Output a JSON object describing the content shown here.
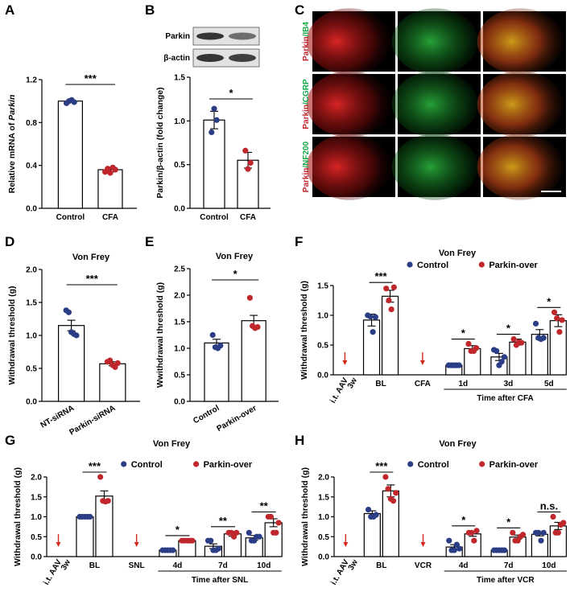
{
  "colors": {
    "control": "#2b3d84",
    "treat": "#c0272d",
    "arrow": "#d42a1e",
    "ib4": "#1aa84a"
  },
  "panel_labels": [
    "A",
    "B",
    "C",
    "D",
    "E",
    "F",
    "G",
    "H"
  ],
  "blot": {
    "rows": [
      "Parkin",
      "β-actin"
    ]
  },
  "micro": {
    "rows": [
      {
        "a": "Parkin",
        "b": "/IB4"
      },
      {
        "a": "Parkin",
        "b": "/CGRP"
      },
      {
        "a": "Parkin",
        "b": "/NF200"
      }
    ]
  },
  "chart_data": [
    {
      "id": "A",
      "type": "bar",
      "ylabel_plain": "Relative mRNA of ",
      "ylabel_italic": "Parkin",
      "ylim": [
        0,
        1.2
      ],
      "yticks": [
        "0.0",
        "0.4",
        "0.8",
        "1.2"
      ],
      "ytick_values": [
        0,
        0.4,
        0.8,
        1.2
      ],
      "categories": [
        "Control",
        "CFA"
      ],
      "values": [
        1.0,
        0.36
      ],
      "errors": [
        0.01,
        0.02
      ],
      "points": [
        [
          0.98,
          1.0,
          1.01,
          0.99
        ],
        [
          0.34,
          0.37,
          0.33,
          0.38,
          0.36
        ]
      ],
      "significance": [
        {
          "text": "***"
        }
      ]
    },
    {
      "id": "B",
      "type": "bar",
      "ylabel": "Parkin/β-actin (fold change)",
      "ylim": [
        0,
        1.5
      ],
      "yticks": [
        "0.0",
        "0.5",
        "1.0",
        "1.5"
      ],
      "ytick_values": [
        0,
        0.5,
        1.0,
        1.5
      ],
      "categories": [
        "Control",
        "CFA"
      ],
      "values": [
        1.01,
        0.55
      ],
      "errors": [
        0.1,
        0.09
      ],
      "points": [
        [
          0.87,
          1.14,
          1.01
        ],
        [
          0.66,
          0.45,
          0.52
        ]
      ],
      "significance": [
        {
          "text": "*"
        }
      ]
    },
    {
      "id": "D",
      "type": "bar",
      "title": "Von Frey",
      "ylabel": "Withdrawal threshold (g)",
      "ylim": [
        0,
        2.0
      ],
      "yticks": [
        "0.0",
        "0.5",
        "1.0",
        "1.5",
        "2.0"
      ],
      "ytick_values": [
        0,
        0.5,
        1.0,
        1.5,
        2.0
      ],
      "categories": [
        "NT-siRNA",
        "Parkin-siRNA"
      ],
      "values": [
        1.15,
        0.57
      ],
      "errors": [
        0.08,
        0.03
      ],
      "points": [
        [
          1.38,
          1.35,
          1.05,
          1.02,
          1.0
        ],
        [
          0.6,
          0.62,
          0.55,
          0.52,
          0.58
        ]
      ],
      "significance": [
        {
          "text": "***"
        }
      ]
    },
    {
      "id": "E",
      "type": "bar",
      "title": "Von Frey",
      "ylabel": "Wwithdrawal threshold (g)",
      "ylim": [
        0,
        2.5
      ],
      "yticks": [
        "0.0",
        "0.5",
        "1.0",
        "1.5",
        "2.0",
        "2.5"
      ],
      "ytick_values": [
        0,
        0.5,
        1.0,
        1.5,
        2.0,
        2.5
      ],
      "categories": [
        "Control",
        "Parkin-over"
      ],
      "values": [
        1.1,
        1.52
      ],
      "errors": [
        0.07,
        0.1
      ],
      "points": [
        [
          1.25,
          1.02,
          1.0,
          1.05
        ],
        [
          1.95,
          1.42,
          1.38,
          1.4
        ]
      ],
      "significance": [
        {
          "text": "*"
        }
      ]
    },
    {
      "id": "F",
      "type": "bar",
      "title": "Von Frey",
      "ylabel": "Withdrawal threshold (g)",
      "ylim": [
        0,
        1.5
      ],
      "yticks": [
        "0.0",
        "0.5",
        "1.0",
        "1.5"
      ],
      "ytick_values": [
        0,
        0.5,
        1.0,
        1.5
      ],
      "legend": [
        "Control",
        "Parkin-over"
      ],
      "aav_label": [
        "i.t. AAV",
        "3w"
      ],
      "event_label": "CFA",
      "xlabel": "Time after CFA",
      "groups": [
        {
          "label": "BL",
          "control": {
            "value": 0.92,
            "error": 0.1,
            "points": [
              1.0,
              0.98,
              0.72,
              0.97
            ]
          },
          "treat": {
            "value": 1.32,
            "error": 0.1,
            "points": [
              1.45,
              1.25,
              1.1,
              1.47
            ]
          },
          "sig": "***"
        },
        {
          "label": "1d",
          "control": {
            "value": 0.16,
            "error": 0.005,
            "points": [
              0.16,
              0.16,
              0.16,
              0.16,
              0.16
            ]
          },
          "treat": {
            "value": 0.44,
            "error": 0.05,
            "points": [
              0.52,
              0.4,
              0.4,
              0.45
            ]
          },
          "sig": "*"
        },
        {
          "label": "3d",
          "control": {
            "value": 0.3,
            "error": 0.06,
            "points": [
              0.42,
              0.4,
              0.16,
              0.22,
              0.3
            ]
          },
          "treat": {
            "value": 0.55,
            "error": 0.05,
            "points": [
              0.6,
              0.5,
              0.55,
              0.54
            ]
          },
          "sig": "*"
        },
        {
          "label": "5d",
          "control": {
            "value": 0.68,
            "error": 0.08,
            "points": [
              0.86,
              0.62,
              0.6,
              0.62
            ]
          },
          "treat": {
            "value": 0.91,
            "error": 0.1,
            "points": [
              1.05,
              0.95,
              0.72,
              0.92
            ]
          },
          "sig": "*"
        }
      ]
    },
    {
      "id": "G",
      "type": "bar",
      "title": "Von Frey",
      "ylabel": "Withdrawal threshold (g)",
      "ylim": [
        0,
        2.0
      ],
      "yticks": [
        "0.0",
        "0.5",
        "1.0",
        "1.5",
        "2.0"
      ],
      "ytick_values": [
        0,
        0.5,
        1.0,
        1.5,
        2.0
      ],
      "legend": [
        "Control",
        "Parkin-over"
      ],
      "aav_label": [
        "i.t. AAV",
        "3w"
      ],
      "event_label": "SNL",
      "xlabel": "Time after SNL",
      "groups": [
        {
          "label": "BL",
          "control": {
            "value": 1.0,
            "error": 0.005,
            "points": [
              1.0,
              1.0,
              1.0,
              1.0,
              1.0
            ]
          },
          "treat": {
            "value": 1.52,
            "error": 0.13,
            "points": [
              2.0,
              1.4,
              1.38,
              1.4
            ]
          },
          "sig": "***"
        },
        {
          "label": "4d",
          "control": {
            "value": 0.16,
            "error": 0.005,
            "points": [
              0.16,
              0.16,
              0.16,
              0.16,
              0.16
            ]
          },
          "treat": {
            "value": 0.4,
            "error": 0.005,
            "points": [
              0.4,
              0.4,
              0.4,
              0.4,
              0.4
            ]
          },
          "sig": "*"
        },
        {
          "label": "7d",
          "control": {
            "value": 0.26,
            "error": 0.06,
            "points": [
              0.4,
              0.4,
              0.16,
              0.16,
              0.2
            ]
          },
          "treat": {
            "value": 0.57,
            "error": 0.06,
            "points": [
              0.6,
              0.6,
              0.5,
              0.6
            ]
          },
          "sig": "**"
        },
        {
          "label": "10d",
          "control": {
            "value": 0.47,
            "error": 0.06,
            "points": [
              0.6,
              0.4,
              0.4,
              0.5,
              0.5
            ]
          },
          "treat": {
            "value": 0.85,
            "error": 0.1,
            "points": [
              1.0,
              1.0,
              0.6,
              0.6,
              0.85
            ]
          },
          "sig": "**"
        }
      ]
    },
    {
      "id": "H",
      "type": "bar",
      "title": "Von Frey",
      "ylabel": "Withdrawal threshold (g)",
      "ylim": [
        0,
        2.0
      ],
      "yticks": [
        "0.0",
        "0.5",
        "1.0",
        "1.5",
        "2.0"
      ],
      "ytick_values": [
        0,
        0.5,
        1.0,
        1.5,
        2.0
      ],
      "legend": [
        "Control",
        "Parkin-over"
      ],
      "aav_label": [
        "i.t. AAV",
        "3w"
      ],
      "event_label": "VCR",
      "xlabel": "Time after VCR",
      "groups": [
        {
          "label": "BL",
          "control": {
            "value": 1.08,
            "error": 0.07,
            "points": [
              1.18,
              1.0,
              1.0,
              1.05
            ]
          },
          "treat": {
            "value": 1.65,
            "error": 0.15,
            "points": [
              2.0,
              1.7,
              1.45,
              1.4,
              1.6
            ]
          },
          "sig": "***"
        },
        {
          "label": "4d",
          "control": {
            "value": 0.24,
            "error": 0.06,
            "points": [
              0.4,
              0.16,
              0.16,
              0.3,
              0.2
            ]
          },
          "treat": {
            "value": 0.57,
            "error": 0.06,
            "points": [
              0.6,
              0.6,
              0.4,
              0.65
            ]
          },
          "sig": "*"
        },
        {
          "label": "7d",
          "control": {
            "value": 0.16,
            "error": 0.005,
            "points": [
              0.16,
              0.16,
              0.16,
              0.16,
              0.16
            ]
          },
          "treat": {
            "value": 0.49,
            "error": 0.05,
            "points": [
              0.6,
              0.4,
              0.4,
              0.5,
              0.55
            ]
          },
          "sig": "*"
        },
        {
          "label": "10d",
          "control": {
            "value": 0.56,
            "error": 0.04,
            "points": [
              0.6,
              0.6,
              0.4,
              0.6
            ]
          },
          "treat": {
            "value": 0.77,
            "error": 0.09,
            "points": [
              1.0,
              0.6,
              0.6,
              0.8,
              0.85
            ]
          },
          "sig": "n.s."
        }
      ]
    }
  ]
}
